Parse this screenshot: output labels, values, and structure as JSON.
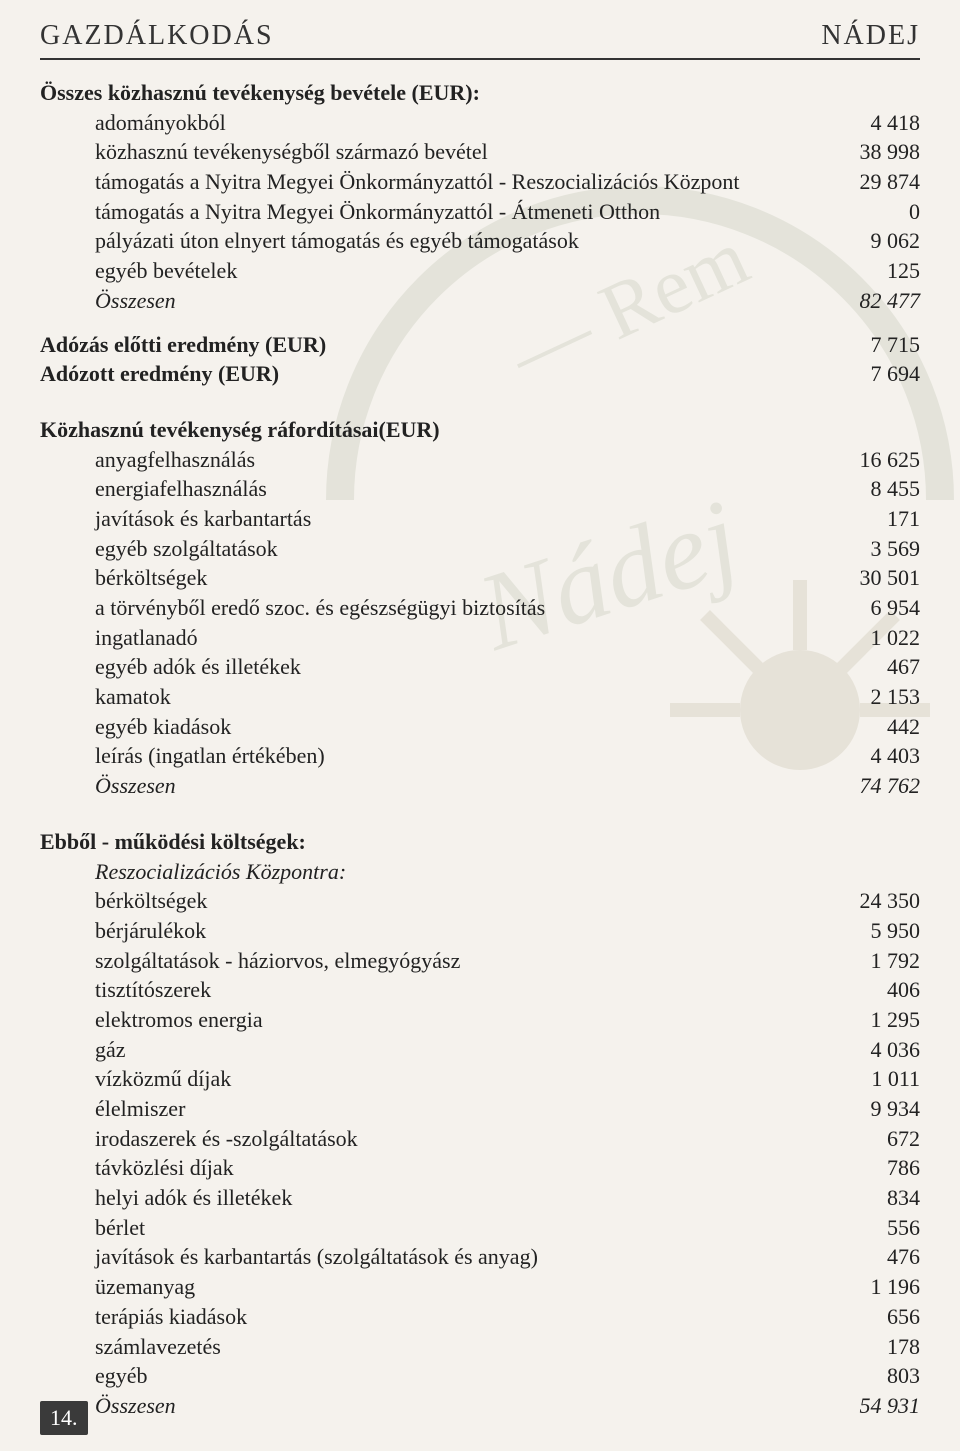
{
  "header": {
    "left": "GAZDÁLKODÁS",
    "right": "NÁDEJ"
  },
  "page_number": "14.",
  "overall_revenue_title": "Összes közhasznú tevékenység bevétele (EUR):",
  "overall_revenue": [
    {
      "label": "adományokból",
      "value": "4 418"
    },
    {
      "label": "közhasznú tevékenységből származó bevétel",
      "value": "38 998"
    },
    {
      "label": "támogatás a Nyitra Megyei Önkormányzattól - Reszocializációs Központ",
      "value": "29 874"
    },
    {
      "label": "támogatás a Nyitra Megyei Önkormányzattól - Átmeneti Otthon",
      "value": "0"
    },
    {
      "label": "pályázati úton elnyert támogatás és egyéb támogatások",
      "value": "9 062"
    },
    {
      "label": "egyéb bevételek",
      "value": "125"
    },
    {
      "label": "Összesen",
      "value": "82 477",
      "italic": true
    }
  ],
  "profit_before_tax": {
    "label": "Adózás előtti eredmény (EUR)",
    "value": "7 715"
  },
  "profit_after_tax": {
    "label": "Adózott eredmény (EUR)",
    "value": "7 694"
  },
  "expenses_title": "Közhasznú tevékenység ráfordításai(EUR)",
  "expenses": [
    {
      "label": "anyagfelhasználás",
      "value": "16 625"
    },
    {
      "label": "energiafelhasználás",
      "value": "8 455"
    },
    {
      "label": "javítások és karbantartás",
      "value": "171"
    },
    {
      "label": "egyéb szolgáltatások",
      "value": "3 569"
    },
    {
      "label": "bérköltségek",
      "value": "30 501"
    },
    {
      "label": "a törvényből eredő szoc. és egészségügyi biztosítás",
      "value": "6 954"
    },
    {
      "label": "ingatlanadó",
      "value": "1 022"
    },
    {
      "label": "egyéb adók és illetékek",
      "value": "467"
    },
    {
      "label": "kamatok",
      "value": "2 153"
    },
    {
      "label": "egyéb kiadások",
      "value": "442"
    },
    {
      "label": "leírás (ingatlan értékében)",
      "value": "4 403"
    },
    {
      "label": "Összesen",
      "value": "74 762",
      "italic": true
    }
  ],
  "op_costs_title": "Ebből - működési költségek:",
  "op_costs_subtitle": "Reszocializációs Központra:",
  "op_costs": [
    {
      "label": "bérköltségek",
      "value": "24 350"
    },
    {
      "label": "bérjárulékok",
      "value": "5 950"
    },
    {
      "label": "szolgáltatások - háziorvos, elmegyógyász",
      "value": "1 792"
    },
    {
      "label": "tisztítószerek",
      "value": "406"
    },
    {
      "label": "elektromos energia",
      "value": "1 295"
    },
    {
      "label": "gáz",
      "value": "4 036"
    },
    {
      "label": "vízközmű díjak",
      "value": "1 011"
    },
    {
      "label": "élelmiszer",
      "value": "9 934"
    },
    {
      "label": "irodaszerek és -szolgáltatások",
      "value": "672"
    },
    {
      "label": "távközlési díjak",
      "value": "786"
    },
    {
      "label": "helyi adók és illetékek",
      "value": "834"
    },
    {
      "label": "bérlet",
      "value": "556"
    },
    {
      "label": "javítások és karbantartás (szolgáltatások és anyag)",
      "value": "476"
    },
    {
      "label": "üzemanyag",
      "value": "1 196"
    },
    {
      "label": "terápiás kiadások",
      "value": "656"
    },
    {
      "label": "számlavezetés",
      "value": "178"
    },
    {
      "label": "egyéb",
      "value": "803"
    },
    {
      "label": "Összesen",
      "value": "54 931",
      "italic": true
    }
  ],
  "colors": {
    "page_bg": "#f5f2ed",
    "text": "#222222",
    "divider": "#333333",
    "page_number_bg": "#3a3a3a",
    "page_number_fg": "#ffffff",
    "watermark_stroke": "#546b3f",
    "watermark_sun": "#6b5b2b"
  }
}
